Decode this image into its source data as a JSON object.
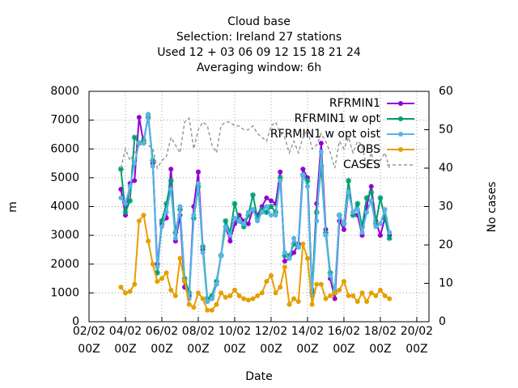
{
  "chart_data": {
    "type": "line",
    "title": [
      "Cloud base",
      "Selection: Ireland      27 stations",
      "Used  12 + 03 06 09 12 15 18 21 24",
      "Averaging window:  6h"
    ],
    "xlabel": "Date",
    "ylabel": "m",
    "y2label": "No cases",
    "xlim": [
      2,
      20.67
    ],
    "xticks": [
      {
        "value": 2,
        "label": "02/02\n00Z"
      },
      {
        "value": 4,
        "label": "04/02\n00Z"
      },
      {
        "value": 6,
        "label": "06/02\n00Z"
      },
      {
        "value": 8,
        "label": "08/02\n00Z"
      },
      {
        "value": 10,
        "label": "10/02\n00Z"
      },
      {
        "value": 12,
        "label": "12/02\n00Z"
      },
      {
        "value": 14,
        "label": "14/02\n00Z"
      },
      {
        "value": 16,
        "label": "16/02\n00Z"
      },
      {
        "value": 18,
        "label": "18/02\n00Z"
      },
      {
        "value": 20,
        "label": "20/02\n00Z"
      }
    ],
    "ylim": [
      0,
      8000
    ],
    "yticks": [
      0,
      1000,
      2000,
      3000,
      4000,
      5000,
      6000,
      7000,
      8000
    ],
    "y2lim": [
      0,
      60
    ],
    "y2ticks": [
      0,
      10,
      20,
      30,
      40,
      50,
      60
    ],
    "grid": true,
    "legend": "top-right",
    "x": [
      3.75,
      4,
      4.25,
      4.5,
      4.75,
      5,
      5.25,
      5.5,
      5.75,
      6,
      6.25,
      6.5,
      6.75,
      7,
      7.25,
      7.5,
      7.75,
      8,
      8.25,
      8.5,
      8.75,
      9,
      9.25,
      9.5,
      9.75,
      10,
      10.25,
      10.5,
      10.75,
      11,
      11.25,
      11.5,
      11.75,
      12,
      12.25,
      12.5,
      12.75,
      13,
      13.25,
      13.5,
      13.75,
      14,
      14.25,
      14.5,
      14.75,
      15,
      15.25,
      15.5,
      15.75,
      16,
      16.25,
      16.5,
      16.75,
      17,
      17.25,
      17.5,
      17.75,
      18,
      18.25,
      18.5
    ],
    "series": [
      {
        "name": "RFRMIN1",
        "color": "#9400d3",
        "marker": "circle",
        "values": [
          4600,
          3700,
          4800,
          4900,
          7100,
          6200,
          7200,
          5500,
          2000,
          3400,
          3600,
          5300,
          2800,
          3700,
          1200,
          900,
          4000,
          5200,
          2500,
          700,
          800,
          1300,
          2300,
          3300,
          2800,
          3400,
          3700,
          3500,
          3400,
          3900,
          3700,
          4000,
          4300,
          4200,
          4100,
          5200,
          2100,
          2200,
          2400,
          2700,
          5300,
          5000,
          1000,
          4100,
          6200,
          3200,
          1500,
          800,
          3500,
          3200,
          4500,
          3800,
          3700,
          3000,
          4000,
          4700,
          3500,
          3000,
          3600,
          3000
        ]
      },
      {
        "name": "RFRMIN1 w opt",
        "color": "#009e73",
        "marker": "star",
        "values": [
          5300,
          3800,
          4200,
          6400,
          6200,
          6300,
          7100,
          5600,
          1700,
          3500,
          4100,
          4900,
          3100,
          3900,
          1500,
          1000,
          3600,
          4700,
          2600,
          800,
          900,
          1400,
          2300,
          3500,
          3100,
          4100,
          3500,
          3300,
          3700,
          4400,
          3600,
          3900,
          3800,
          4000,
          3800,
          5000,
          2300,
          2300,
          2700,
          2600,
          5100,
          4900,
          1100,
          3800,
          5400,
          3100,
          1700,
          1000,
          3700,
          3400,
          4900,
          3700,
          4100,
          3300,
          4300,
          4500,
          3400,
          4300,
          3600,
          2900
        ]
      },
      {
        "name": "RFRMIN1 w opt oist",
        "color": "#56b4e9",
        "marker": "circle",
        "values": [
          4300,
          4100,
          4700,
          5500,
          6200,
          6200,
          7200,
          5400,
          1900,
          3300,
          3800,
          4600,
          2900,
          4000,
          1400,
          800,
          3700,
          4800,
          2400,
          700,
          800,
          1300,
          2300,
          3300,
          3000,
          3600,
          3500,
          3400,
          3800,
          3900,
          3500,
          3800,
          4000,
          3700,
          3700,
          4900,
          2400,
          2200,
          2900,
          2600,
          5100,
          4700,
          900,
          3500,
          5900,
          3000,
          1600,
          1100,
          3700,
          3400,
          4500,
          3800,
          3900,
          3100,
          3800,
          4200,
          3300,
          3400,
          3900,
          3100
        ]
      },
      {
        "name": "OBS",
        "color": "#e69f00",
        "marker": "circle",
        "values": [
          1200,
          1000,
          1050,
          1300,
          3500,
          3700,
          2800,
          2000,
          1400,
          1500,
          1700,
          1100,
          900,
          2200,
          1400,
          600,
          500,
          1000,
          800,
          400,
          400,
          600,
          1000,
          850,
          900,
          1100,
          900,
          800,
          750,
          800,
          900,
          1000,
          1400,
          1600,
          1000,
          1200,
          1900,
          600,
          800,
          700,
          2700,
          2200,
          600,
          1300,
          1300,
          800,
          900,
          1000,
          1100,
          1400,
          900,
          900,
          700,
          1000,
          700,
          1000,
          900,
          1100,
          900,
          800
        ]
      },
      {
        "name": "CASES",
        "color": "#999999",
        "axis": "y2",
        "dash": true,
        "values": [
          40,
          45,
          42,
          44,
          46,
          47,
          46,
          45,
          40,
          42,
          43,
          48,
          46,
          44,
          52,
          53,
          45,
          50,
          52,
          51,
          46,
          44,
          51,
          52,
          52,
          51,
          51,
          50,
          50,
          51,
          49,
          48,
          47,
          51,
          52,
          49,
          48,
          44,
          47,
          44,
          48,
          50,
          45,
          46,
          49,
          47,
          44,
          40,
          47,
          45,
          48,
          44,
          47,
          46,
          40,
          44,
          40,
          42,
          44,
          40
        ]
      }
    ]
  }
}
